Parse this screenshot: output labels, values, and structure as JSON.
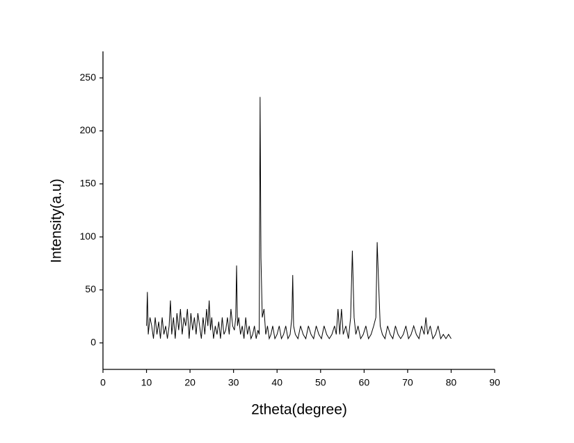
{
  "chart_data": {
    "type": "line",
    "x_label": "2theta(degree)",
    "y_label": "Intensity(a.u)",
    "xlim": [
      0,
      90
    ],
    "xticks": [
      0,
      10,
      20,
      30,
      40,
      50,
      60,
      70,
      80,
      90
    ],
    "ylim": [
      -25,
      275
    ],
    "yticks": [
      0,
      50,
      100,
      150,
      200,
      250
    ],
    "grid": false,
    "series": [
      {
        "color": "#000000",
        "x": [
          10,
          10.2,
          10.4,
          10.8,
          11.2,
          11.6,
          12.0,
          12.4,
          12.8,
          13.2,
          13.6,
          14.0,
          14.4,
          14.8,
          15.2,
          15.5,
          15.8,
          16.2,
          16.6,
          17.0,
          17.4,
          17.8,
          18.2,
          18.6,
          19.0,
          19.4,
          19.8,
          20.2,
          20.6,
          21.0,
          21.4,
          21.8,
          22.2,
          22.6,
          23.0,
          23.4,
          23.8,
          24.1,
          24.4,
          24.7,
          25.0,
          25.4,
          25.8,
          26.2,
          26.6,
          27.0,
          27.4,
          27.8,
          28.2,
          28.6,
          29.0,
          29.4,
          29.8,
          30.2,
          30.5,
          30.7,
          30.9,
          31.2,
          31.6,
          32.0,
          32.4,
          32.8,
          33.2,
          33.6,
          34.0,
          34.4,
          34.8,
          35.2,
          35.6,
          35.9,
          36.1,
          36.3,
          36.6,
          37.0,
          37.4,
          37.8,
          38.2,
          38.6,
          39.0,
          39.5,
          40.0,
          40.5,
          41.0,
          41.5,
          42.0,
          42.5,
          43.0,
          43.4,
          43.6,
          43.8,
          44.2,
          44.8,
          45.4,
          46.0,
          46.6,
          47.2,
          47.8,
          48.4,
          49.0,
          49.6,
          50.2,
          50.8,
          51.4,
          52.0,
          52.6,
          53.2,
          53.6,
          54.0,
          54.4,
          54.8,
          55.2,
          55.8,
          56.4,
          56.9,
          57.3,
          57.7,
          58.1,
          58.6,
          59.2,
          59.8,
          60.4,
          61.0,
          61.6,
          62.2,
          62.7,
          63.0,
          63.3,
          63.7,
          64.2,
          64.8,
          65.4,
          66.0,
          66.6,
          67.2,
          67.8,
          68.4,
          69.0,
          69.6,
          70.2,
          70.8,
          71.4,
          72.0,
          72.6,
          73.2,
          73.8,
          74.2,
          74.6,
          75.2,
          75.8,
          76.4,
          77.0,
          77.6,
          78.2,
          78.8,
          79.4,
          80.0
        ],
        "values": [
          16,
          48,
          8,
          24,
          16,
          4,
          24,
          8,
          20,
          4,
          24,
          8,
          16,
          4,
          16,
          40,
          8,
          24,
          4,
          28,
          12,
          32,
          8,
          24,
          16,
          32,
          4,
          28,
          12,
          24,
          8,
          28,
          16,
          4,
          24,
          8,
          32,
          16,
          40,
          12,
          24,
          4,
          16,
          8,
          20,
          4,
          24,
          8,
          12,
          24,
          8,
          32,
          16,
          12,
          24,
          73,
          16,
          24,
          8,
          16,
          4,
          24,
          8,
          16,
          4,
          8,
          16,
          4,
          12,
          8,
          232,
          80,
          24,
          32,
          8,
          16,
          4,
          8,
          16,
          4,
          8,
          16,
          4,
          8,
          16,
          4,
          8,
          24,
          64,
          16,
          8,
          4,
          16,
          8,
          4,
          16,
          8,
          4,
          16,
          8,
          4,
          16,
          8,
          4,
          8,
          16,
          8,
          32,
          8,
          32,
          8,
          16,
          4,
          24,
          87,
          24,
          8,
          16,
          4,
          8,
          16,
          4,
          8,
          16,
          24,
          95,
          60,
          16,
          8,
          4,
          16,
          8,
          4,
          16,
          8,
          4,
          8,
          16,
          4,
          8,
          16,
          8,
          4,
          16,
          8,
          24,
          8,
          16,
          4,
          8,
          16,
          4,
          8,
          4,
          8,
          4
        ]
      }
    ]
  }
}
